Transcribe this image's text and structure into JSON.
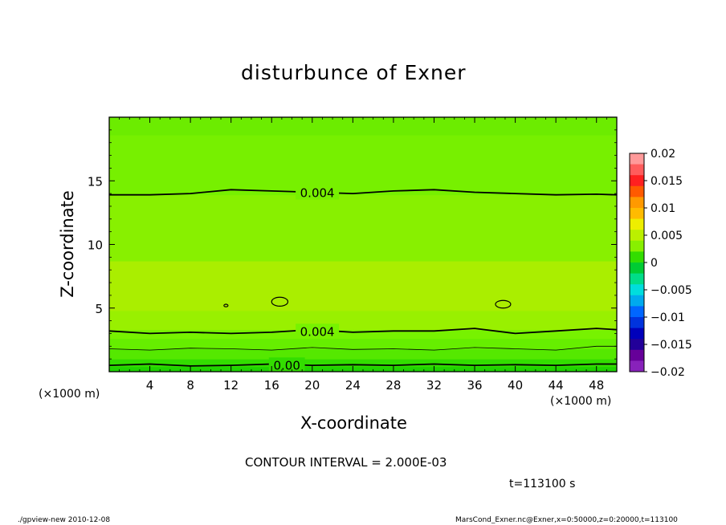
{
  "chart_data": {
    "type": "heatmap",
    "title": "disturbunce of Exner",
    "xlabel": "X-coordinate",
    "ylabel": "Z-coordinate",
    "x_unit": "(×1000 m)",
    "x_unit_right": "(×1000 m)",
    "xlim": [
      0,
      50
    ],
    "ylim": [
      0,
      20
    ],
    "x_ticks": [
      4,
      8,
      12,
      16,
      20,
      24,
      28,
      32,
      36,
      40,
      44,
      48
    ],
    "y_ticks": [
      5,
      10,
      15
    ],
    "contour_interval": "CONTOUR INTERVAL = 2.000E-03",
    "time_label": "t=113100 s",
    "contour_labels": [
      {
        "text": "0.004",
        "x": 20.5,
        "z": 14.1
      },
      {
        "text": "0.004",
        "x": 20.5,
        "z": 3.2
      },
      {
        "text": "0.00",
        "x": 17.5,
        "z": 0.55
      }
    ],
    "contour_lines": [
      {
        "level": 0.004,
        "weight": "bold",
        "points": [
          [
            0,
            13.9
          ],
          [
            4,
            13.9
          ],
          [
            8,
            14.0
          ],
          [
            12,
            14.3
          ],
          [
            16,
            14.2
          ],
          [
            20,
            14.1
          ],
          [
            24,
            14.0
          ],
          [
            28,
            14.2
          ],
          [
            32,
            14.3
          ],
          [
            36,
            14.1
          ],
          [
            40,
            14.0
          ],
          [
            44,
            13.9
          ],
          [
            48,
            13.95
          ],
          [
            50,
            13.9
          ]
        ]
      },
      {
        "level": 0.004,
        "weight": "bold",
        "points": [
          [
            0,
            3.2
          ],
          [
            4,
            3.0
          ],
          [
            8,
            3.1
          ],
          [
            12,
            3.0
          ],
          [
            16,
            3.1
          ],
          [
            20,
            3.3
          ],
          [
            24,
            3.1
          ],
          [
            28,
            3.2
          ],
          [
            32,
            3.2
          ],
          [
            36,
            3.4
          ],
          [
            40,
            3.0
          ],
          [
            44,
            3.2
          ],
          [
            48,
            3.4
          ],
          [
            50,
            3.3
          ]
        ]
      },
      {
        "level": 0.002,
        "weight": "thin",
        "points": [
          [
            0,
            1.8
          ],
          [
            4,
            1.7
          ],
          [
            8,
            1.85
          ],
          [
            12,
            1.8
          ],
          [
            16,
            1.7
          ],
          [
            20,
            1.9
          ],
          [
            24,
            1.75
          ],
          [
            28,
            1.8
          ],
          [
            32,
            1.7
          ],
          [
            36,
            1.9
          ],
          [
            40,
            1.8
          ],
          [
            44,
            1.7
          ],
          [
            48,
            2.0
          ],
          [
            50,
            2.0
          ]
        ]
      },
      {
        "level": 0.0,
        "weight": "bold",
        "points": [
          [
            0,
            0.5
          ],
          [
            4,
            0.6
          ],
          [
            8,
            0.45
          ],
          [
            12,
            0.5
          ],
          [
            16,
            0.6
          ],
          [
            20,
            0.5
          ],
          [
            24,
            0.55
          ],
          [
            28,
            0.5
          ],
          [
            32,
            0.6
          ],
          [
            36,
            0.5
          ],
          [
            40,
            0.55
          ],
          [
            44,
            0.5
          ],
          [
            48,
            0.6
          ],
          [
            50,
            0.6
          ]
        ]
      }
    ],
    "closed_contours": [
      {
        "cx": 16.8,
        "cz": 5.5,
        "rx": 0.8,
        "rz": 0.35
      },
      {
        "cx": 38.8,
        "cz": 5.3,
        "rx": 0.75,
        "rz": 0.3
      },
      {
        "cx": 11.5,
        "cz": 5.2,
        "rx": 0.2,
        "rz": 0.1
      }
    ],
    "bands": [
      {
        "z0": 0.0,
        "z1": 0.4,
        "color": "#1fd400"
      },
      {
        "z0": 0.4,
        "z1": 1.0,
        "color": "#33dd00"
      },
      {
        "z0": 1.0,
        "z1": 1.8,
        "color": "#55e800"
      },
      {
        "z0": 1.8,
        "z1": 2.6,
        "color": "#66ee00"
      },
      {
        "z0": 2.6,
        "z1": 3.3,
        "color": "#77f200"
      },
      {
        "z0": 3.3,
        "z1": 4.8,
        "color": "#99f000"
      },
      {
        "z0": 4.8,
        "z1": 8.7,
        "color": "#aaee00"
      },
      {
        "z0": 8.7,
        "z1": 13.9,
        "color": "#88f000"
      },
      {
        "z0": 13.9,
        "z1": 18.6,
        "color": "#77f000"
      },
      {
        "z0": 18.6,
        "z1": 20.0,
        "color": "#6cec00"
      }
    ],
    "colorbar": {
      "tick_labels": [
        "0.02",
        "0.015",
        "0.01",
        "0.005",
        "0",
        "−0.005",
        "−0.01",
        "−0.015",
        "−0.02"
      ],
      "colors_top_to_bottom": [
        "#ff9a9a",
        "#ff5c5c",
        "#ff2020",
        "#ff5a00",
        "#ff9900",
        "#ffbb00",
        "#eeee00",
        "#bbf000",
        "#88f000",
        "#33dd00",
        "#00cc33",
        "#00dd88",
        "#00dddd",
        "#00aaee",
        "#0066ff",
        "#0033dd",
        "#0000bb",
        "#220099",
        "#660099",
        "#8822bb"
      ]
    }
  },
  "footer": {
    "left": "./gpview-new   2010-12-08",
    "right": "MarsCond_Exner.nc@Exner,x=0:50000,z=0:20000,t=113100"
  }
}
